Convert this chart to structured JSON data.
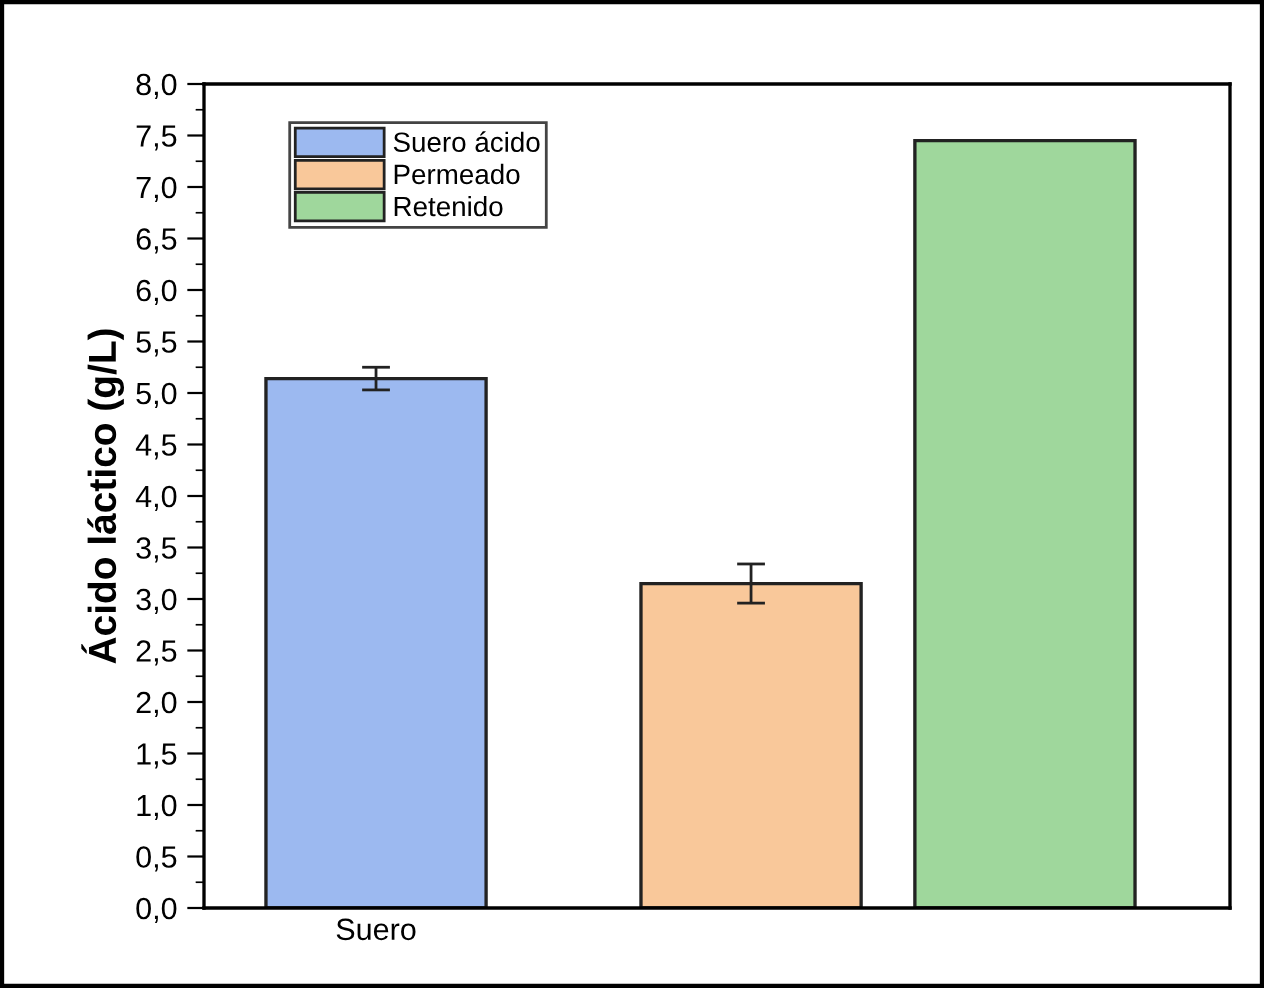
{
  "chart_data": {
    "type": "bar",
    "ylabel": "Ácido láctico (g/L)",
    "categories": [
      "Suero",
      null
    ],
    "series": [
      {
        "name": "Suero ácido",
        "color": "#9cb9f0",
        "values": [
          5.14,
          null
        ],
        "errors": [
          0.11,
          null
        ]
      },
      {
        "name": "Permeado",
        "color": "#f9c89a",
        "values": [
          null,
          3.15
        ],
        "errors": [
          null,
          0.19
        ]
      },
      {
        "name": "Retenido",
        "color": "#9fd79c",
        "values": [
          null,
          7.45
        ],
        "errors": [
          null,
          null
        ]
      }
    ],
    "ylim": [
      0,
      8
    ],
    "yticks": [
      {
        "value": 0,
        "label": "0,0"
      },
      {
        "value": 0.5,
        "label": "0,5"
      },
      {
        "value": 1,
        "label": "1,0"
      },
      {
        "value": 1.5,
        "label": "1,5"
      },
      {
        "value": 2,
        "label": "2,0"
      },
      {
        "value": 2.5,
        "label": "2,5"
      },
      {
        "value": 3,
        "label": "3,0"
      },
      {
        "value": 3.5,
        "label": "3,5"
      },
      {
        "value": 4,
        "label": "4,0"
      },
      {
        "value": 4.5,
        "label": "4,5"
      },
      {
        "value": 5,
        "label": "5,0"
      },
      {
        "value": 5.5,
        "label": "5,5"
      },
      {
        "value": 6,
        "label": "6,0"
      },
      {
        "value": 6.5,
        "label": "6,5"
      },
      {
        "value": 7,
        "label": "7,0"
      },
      {
        "value": 7.5,
        "label": "7,5"
      },
      {
        "value": 8,
        "label": "8,0"
      }
    ],
    "grid": false,
    "legend": "top left"
  }
}
